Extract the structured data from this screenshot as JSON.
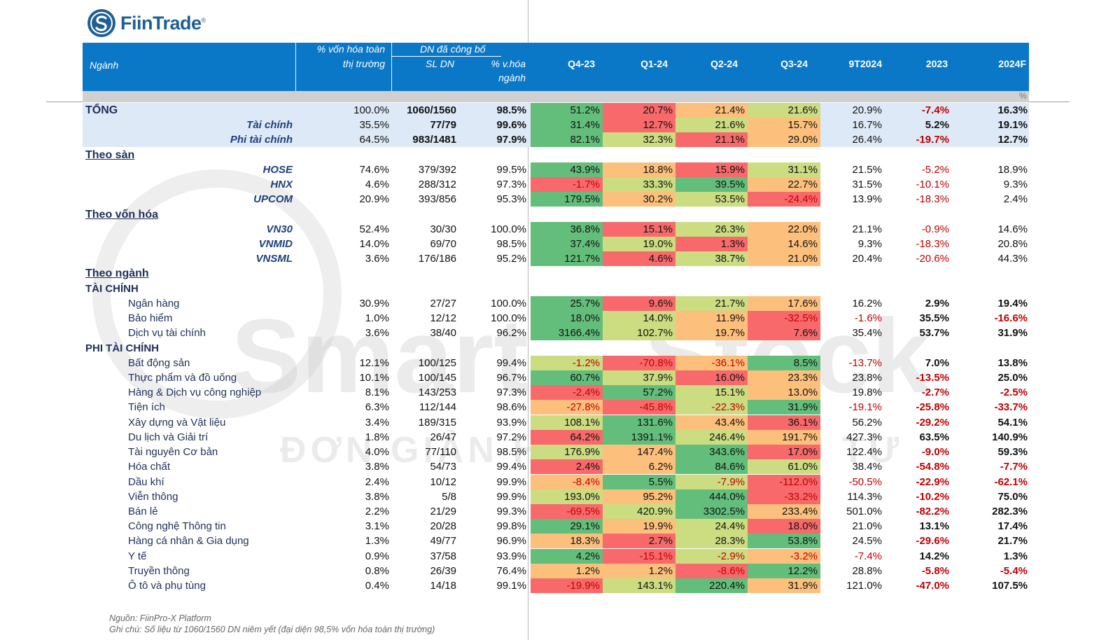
{
  "brand": {
    "name": "FiinTrade",
    "reg_mark": "®"
  },
  "watermark": {
    "word1": "Smart",
    "word2": "Stock",
    "tagline": "ĐƠN GIẢN HOÁ VIỆC ĐẦU TƯ"
  },
  "header": {
    "nganh": "Ngành",
    "von_hoa_line1": "% vốn hóa toàn",
    "von_hoa_line2": "thị trường",
    "group_label": "DN đã công bố",
    "sl_dn": "SL DN",
    "vhoa_line1": "% v.hóa",
    "vhoa_line2": "ngành",
    "quarters": [
      "Q4-23",
      "Q1-24",
      "Q2-24",
      "Q3-24"
    ],
    "cols": [
      "9T2024",
      "2023",
      "2024F"
    ],
    "unit": "%"
  },
  "colors": {
    "header_bg": "#0b78c7",
    "summary_band": "#dde9f6",
    "heat_low": "#f8696b",
    "heat_mid": "#ffeb84",
    "heat_high": "#63be7b",
    "negative_text": "#c00000"
  },
  "chart_data": {
    "type": "table",
    "title": "",
    "columns": [
      "Ngành",
      "% vốn hóa toàn thị trường",
      "SL DN",
      "% v.hóa ngành",
      "Q4-23",
      "Q1-24",
      "Q2-24",
      "Q3-24",
      "9T2024",
      "2023",
      "2024F"
    ],
    "unit": "%",
    "rows": [
      {
        "name": "TỔNG",
        "kind": "total",
        "cap": "100.0%",
        "sl": "1060/1560",
        "vh": "98.5%",
        "q": [
          51.2,
          20.7,
          21.4,
          21.6
        ],
        "qs": [
          "51.2%",
          "20.7%",
          "21.4%",
          "21.6%"
        ],
        "t9": "20.9%",
        "y23": "-7.4%",
        "y24": "16.3%"
      },
      {
        "name": "Tài chính",
        "kind": "sub",
        "cap": "35.5%",
        "sl": "77/79",
        "vh": "99.6%",
        "q": [
          31.4,
          12.7,
          21.6,
          15.7
        ],
        "qs": [
          "31.4%",
          "12.7%",
          "21.6%",
          "15.7%"
        ],
        "t9": "16.7%",
        "y23": "5.2%",
        "y24": "19.1%"
      },
      {
        "name": "Phi tài chính",
        "kind": "sub",
        "cap": "64.5%",
        "sl": "983/1481",
        "vh": "97.9%",
        "q": [
          82.1,
          32.3,
          21.1,
          29.0
        ],
        "qs": [
          "82.1%",
          "32.3%",
          "21.1%",
          "29.0%"
        ],
        "t9": "26.4%",
        "y23": "-19.7%",
        "y24": "12.7%"
      },
      {
        "name": "Theo sàn",
        "kind": "group"
      },
      {
        "name": "HOSE",
        "kind": "subitem",
        "cap": "74.6%",
        "sl": "379/392",
        "vh": "99.5%",
        "q": [
          43.9,
          18.8,
          15.9,
          31.1
        ],
        "qs": [
          "43.9%",
          "18.8%",
          "15.9%",
          "31.1%"
        ],
        "t9": "21.5%",
        "y23": "-5.2%",
        "y24": "18.9%"
      },
      {
        "name": "HNX",
        "kind": "subitem",
        "cap": "4.6%",
        "sl": "288/312",
        "vh": "97.3%",
        "q": [
          -1.7,
          33.3,
          39.5,
          22.7
        ],
        "qs": [
          "-1.7%",
          "33.3%",
          "39.5%",
          "22.7%"
        ],
        "t9": "31.5%",
        "y23": "-10.1%",
        "y24": "9.3%"
      },
      {
        "name": "UPCOM",
        "kind": "subitem",
        "cap": "20.9%",
        "sl": "393/856",
        "vh": "95.3%",
        "q": [
          179.5,
          30.2,
          53.5,
          -24.4
        ],
        "qs": [
          "179.5%",
          "30.2%",
          "53.5%",
          "-24.4%"
        ],
        "t9": "13.9%",
        "y23": "-18.3%",
        "y24": "2.4%"
      },
      {
        "name": "Theo vốn hóa",
        "kind": "group"
      },
      {
        "name": "VN30",
        "kind": "subitem",
        "cap": "52.4%",
        "sl": "30/30",
        "vh": "100.0%",
        "q": [
          36.8,
          15.1,
          26.3,
          22.0
        ],
        "qs": [
          "36.8%",
          "15.1%",
          "26.3%",
          "22.0%"
        ],
        "t9": "21.1%",
        "y23": "-0.9%",
        "y24": "14.6%"
      },
      {
        "name": "VNMID",
        "kind": "subitem",
        "cap": "14.0%",
        "sl": "69/70",
        "vh": "98.5%",
        "q": [
          37.4,
          19.0,
          1.3,
          14.6
        ],
        "qs": [
          "37.4%",
          "19.0%",
          "1.3%",
          "14.6%"
        ],
        "t9": "9.3%",
        "y23": "-18.3%",
        "y24": "20.8%"
      },
      {
        "name": "VNSML",
        "kind": "subitem",
        "cap": "3.6%",
        "sl": "176/186",
        "vh": "95.2%",
        "q": [
          121.7,
          4.6,
          38.7,
          21.0
        ],
        "qs": [
          "121.7%",
          "4.6%",
          "38.7%",
          "21.0%"
        ],
        "t9": "20.4%",
        "y23": "-20.6%",
        "y24": "44.3%"
      },
      {
        "name": "Theo ngành",
        "kind": "group"
      },
      {
        "name": "TÀI CHÍNH",
        "kind": "cat"
      },
      {
        "name": "Ngân hàng",
        "kind": "sector",
        "cap": "30.9%",
        "sl": "27/27",
        "vh": "100.0%",
        "q": [
          25.7,
          9.6,
          21.7,
          17.6
        ],
        "qs": [
          "25.7%",
          "9.6%",
          "21.7%",
          "17.6%"
        ],
        "t9": "16.2%",
        "y23": "2.9%",
        "y24": "19.4%"
      },
      {
        "name": "Bảo hiểm",
        "kind": "sector",
        "cap": "1.0%",
        "sl": "12/12",
        "vh": "100.0%",
        "q": [
          18.0,
          14.0,
          11.9,
          -32.5
        ],
        "qs": [
          "18.0%",
          "14.0%",
          "11.9%",
          "-32.5%"
        ],
        "t9": "-1.6%",
        "y23": "35.5%",
        "y24": "-16.6%"
      },
      {
        "name": "Dịch vụ tài chính",
        "kind": "sector",
        "cap": "3.6%",
        "sl": "38/40",
        "vh": "96.2%",
        "q": [
          3166.4,
          102.7,
          19.7,
          7.6
        ],
        "qs": [
          "3166.4%",
          "102.7%",
          "19.7%",
          "7.6%"
        ],
        "t9": "35.4%",
        "y23": "53.7%",
        "y24": "31.9%"
      },
      {
        "name": "PHI TÀI CHÍNH",
        "kind": "cat"
      },
      {
        "name": "Bất động sản",
        "kind": "sector",
        "cap": "12.1%",
        "sl": "100/125",
        "vh": "99.4%",
        "q": [
          -1.2,
          -70.8,
          -36.1,
          8.5
        ],
        "qs": [
          "-1.2%",
          "-70.8%",
          "-36.1%",
          "8.5%"
        ],
        "t9": "-13.7%",
        "y23": "7.0%",
        "y24": "13.8%"
      },
      {
        "name": "Thực phẩm và đồ uống",
        "kind": "sector",
        "cap": "10.1%",
        "sl": "100/145",
        "vh": "96.7%",
        "q": [
          60.7,
          37.9,
          16.0,
          23.3
        ],
        "qs": [
          "60.7%",
          "37.9%",
          "16.0%",
          "23.3%"
        ],
        "t9": "23.8%",
        "y23": "-13.5%",
        "y24": "25.0%"
      },
      {
        "name": "Hàng & Dịch vụ công nghiệp",
        "kind": "sector",
        "cap": "8.1%",
        "sl": "143/253",
        "vh": "97.3%",
        "q": [
          -2.4,
          57.2,
          15.1,
          13.0
        ],
        "qs": [
          "-2.4%",
          "57.2%",
          "15.1%",
          "13.0%"
        ],
        "t9": "19.8%",
        "y23": "-2.7%",
        "y24": "-2.5%"
      },
      {
        "name": "Tiện ích",
        "kind": "sector",
        "cap": "6.3%",
        "sl": "112/144",
        "vh": "98.6%",
        "q": [
          -27.8,
          -45.8,
          -22.3,
          31.9
        ],
        "qs": [
          "-27.8%",
          "-45.8%",
          "-22.3%",
          "31.9%"
        ],
        "t9": "-19.1%",
        "y23": "-25.8%",
        "y24": "-33.7%"
      },
      {
        "name": "Xây dựng và Vật liệu",
        "kind": "sector",
        "cap": "3.4%",
        "sl": "189/315",
        "vh": "93.9%",
        "q": [
          108.1,
          131.6,
          43.4,
          36.1
        ],
        "qs": [
          "108.1%",
          "131.6%",
          "43.4%",
          "36.1%"
        ],
        "t9": "56.2%",
        "y23": "-29.2%",
        "y24": "54.1%"
      },
      {
        "name": "Du lịch và Giải trí",
        "kind": "sector",
        "cap": "1.8%",
        "sl": "26/47",
        "vh": "97.2%",
        "q": [
          64.2,
          1391.1,
          246.4,
          191.7
        ],
        "qs": [
          "64.2%",
          "1391.1%",
          "246.4%",
          "191.7%"
        ],
        "t9": "427.3%",
        "y23": "63.5%",
        "y24": "140.9%"
      },
      {
        "name": "Tài nguyên Cơ bản",
        "kind": "sector",
        "cap": "4.0%",
        "sl": "77/110",
        "vh": "98.5%",
        "q": [
          176.9,
          147.4,
          343.6,
          17.0
        ],
        "qs": [
          "176.9%",
          "147.4%",
          "343.6%",
          "17.0%"
        ],
        "t9": "122.4%",
        "y23": "-9.0%",
        "y24": "59.3%"
      },
      {
        "name": "Hóa chất",
        "kind": "sector",
        "cap": "3.8%",
        "sl": "54/73",
        "vh": "99.4%",
        "q": [
          2.4,
          6.2,
          84.6,
          61.0
        ],
        "qs": [
          "2.4%",
          "6.2%",
          "84.6%",
          "61.0%"
        ],
        "t9": "38.4%",
        "y23": "-54.8%",
        "y24": "-7.7%"
      },
      {
        "name": "Dầu khí",
        "kind": "sector",
        "cap": "2.4%",
        "sl": "10/12",
        "vh": "99.9%",
        "q": [
          -8.4,
          5.5,
          -7.9,
          -112.0
        ],
        "qs": [
          "-8.4%",
          "5.5%",
          "-7.9%",
          "-112.0%"
        ],
        "t9": "-50.5%",
        "y23": "-22.9%",
        "y24": "-62.1%"
      },
      {
        "name": "Viễn thông",
        "kind": "sector",
        "cap": "3.8%",
        "sl": "5/8",
        "vh": "99.9%",
        "q": [
          193.0,
          95.2,
          444.0,
          -33.2
        ],
        "qs": [
          "193.0%",
          "95.2%",
          "444.0%",
          "-33.2%"
        ],
        "t9": "114.3%",
        "y23": "-10.2%",
        "y24": "75.0%"
      },
      {
        "name": "Bán lẻ",
        "kind": "sector",
        "cap": "2.2%",
        "sl": "21/29",
        "vh": "99.3%",
        "q": [
          -69.5,
          420.9,
          3302.5,
          233.4
        ],
        "qs": [
          "-69.5%",
          "420.9%",
          "3302.5%",
          "233.4%"
        ],
        "t9": "501.0%",
        "y23": "-82.2%",
        "y24": "282.3%"
      },
      {
        "name": "Công nghệ Thông tin",
        "kind": "sector",
        "cap": "3.1%",
        "sl": "20/28",
        "vh": "99.8%",
        "q": [
          29.1,
          19.9,
          24.4,
          18.0
        ],
        "qs": [
          "29.1%",
          "19.9%",
          "24.4%",
          "18.0%"
        ],
        "t9": "21.0%",
        "y23": "13.1%",
        "y24": "17.4%"
      },
      {
        "name": "Hàng cá nhân & Gia dụng",
        "kind": "sector",
        "cap": "1.3%",
        "sl": "49/77",
        "vh": "96.9%",
        "q": [
          18.3,
          2.7,
          28.3,
          53.8
        ],
        "qs": [
          "18.3%",
          "2.7%",
          "28.3%",
          "53.8%"
        ],
        "t9": "24.5%",
        "y23": "-29.6%",
        "y24": "21.7%"
      },
      {
        "name": "Y tế",
        "kind": "sector",
        "cap": "0.9%",
        "sl": "37/58",
        "vh": "93.9%",
        "q": [
          4.2,
          -15.1,
          -2.9,
          -3.2
        ],
        "qs": [
          "4.2%",
          "-15.1%",
          "-2.9%",
          "-3.2%"
        ],
        "t9": "-7.4%",
        "y23": "14.2%",
        "y24": "1.3%"
      },
      {
        "name": "Truyền thông",
        "kind": "sector",
        "cap": "0.8%",
        "sl": "26/39",
        "vh": "76.4%",
        "q": [
          1.2,
          1.2,
          -8.6,
          12.2
        ],
        "qs": [
          "1.2%",
          "1.2%",
          "-8.6%",
          "12.2%"
        ],
        "t9": "28.8%",
        "y23": "-5.8%",
        "y24": "-5.4%"
      },
      {
        "name": "Ô tô và phụ tùng",
        "kind": "sector",
        "cap": "0.4%",
        "sl": "14/18",
        "vh": "99.1%",
        "q": [
          -19.9,
          143.1,
          220.4,
          31.9
        ],
        "qs": [
          "-19.9%",
          "143.1%",
          "220.4%",
          "31.9%"
        ],
        "t9": "121.0%",
        "y23": "-47.0%",
        "y24": "107.5%"
      }
    ]
  },
  "footer": {
    "source": "Nguồn: FiinPro-X Platform",
    "note": "Ghi chú: Số liệu từ 1060/1560 DN niêm yết (đại diện 98,5% vốn hóa toàn thị trường)"
  }
}
